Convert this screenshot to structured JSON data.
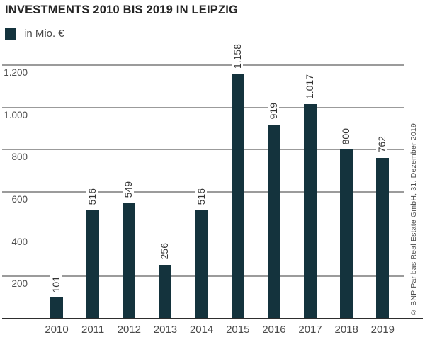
{
  "title": "INVESTMENTS 2010 BIS 2019 IN LEIPZIG",
  "legend": {
    "label": "in Mio. €",
    "swatch_color": "#14333d"
  },
  "chart_data": {
    "type": "bar",
    "title": "INVESTMENTS 2010 BIS 2019 IN LEIPZIG",
    "unit_label": "in Mio. €",
    "categories": [
      "2010",
      "2011",
      "2012",
      "2013",
      "2014",
      "2015",
      "2016",
      "2017",
      "2018",
      "2019"
    ],
    "values": [
      101,
      516,
      549,
      256,
      516,
      1158,
      919,
      1017,
      800,
      762
    ],
    "value_labels": [
      "101",
      "516",
      "549",
      "256",
      "516",
      "1.158",
      "919",
      "1.017",
      "800",
      "762"
    ],
    "ylim": [
      0,
      1200
    ],
    "ytick_values": [
      200,
      400,
      600,
      800,
      1000,
      1200
    ],
    "ytick_labels": [
      "200",
      "400",
      "600",
      "800",
      "1.000",
      "1.200"
    ],
    "grid": true,
    "legend_position": "top-left",
    "bar_color": "#14333d"
  },
  "footer": {
    "copyright": "© BNP Paribas Real Estate GmbH, 31. Dezember 2019"
  },
  "colors": {
    "bar": "#14333d",
    "gridline": "#9b9b9b",
    "baseline": "#2e2e2e",
    "title_text": "#262626",
    "axis_text": "#4a4a4a",
    "value_text": "#333333"
  }
}
